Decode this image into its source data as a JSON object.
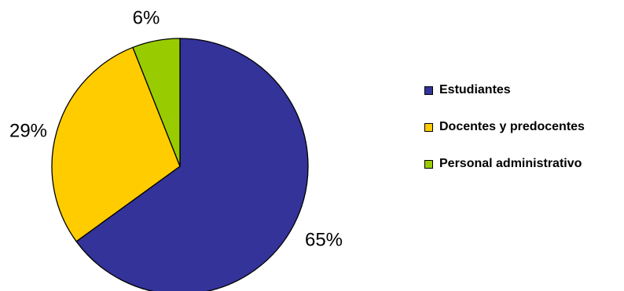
{
  "chart_data": {
    "type": "pie",
    "categories": [
      "Estudiantes",
      "Docentes y predocentes",
      "Personal administrativo"
    ],
    "values": [
      65,
      29,
      6
    ],
    "value_labels": [
      "65%",
      "29%",
      "6%"
    ],
    "colors": [
      "#333399",
      "#FFCC00",
      "#99CC00"
    ],
    "title": "",
    "legend_position": "right"
  }
}
